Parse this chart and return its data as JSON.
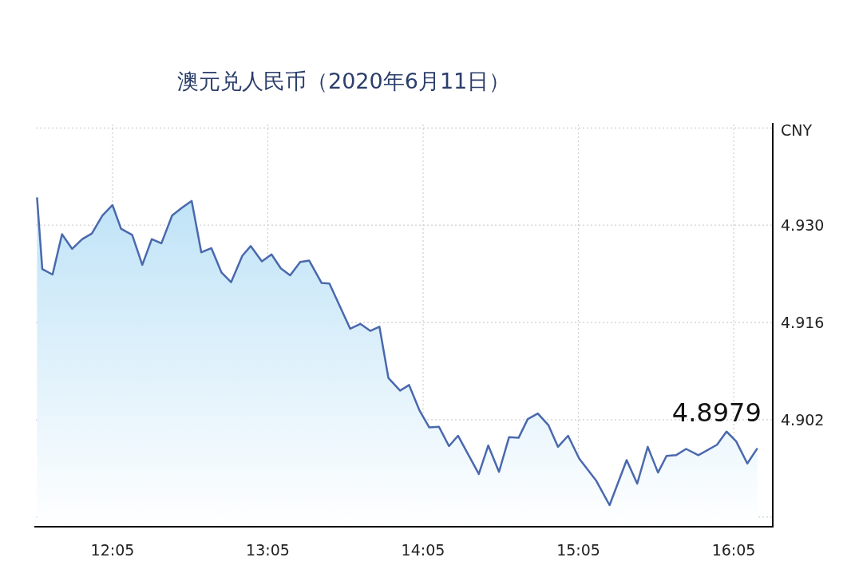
{
  "chart_data": {
    "type": "area",
    "title": "澳元兑人民币（2020年6月11日）",
    "ylabel": "CNY",
    "color": "#4a69ad",
    "x": [
      11.597,
      11.631,
      11.697,
      11.758,
      11.823,
      11.888,
      11.95,
      12.018,
      12.083,
      12.138,
      12.21,
      12.275,
      12.336,
      12.398,
      12.467,
      12.529,
      12.593,
      12.655,
      12.72,
      12.785,
      12.847,
      12.919,
      12.973,
      13.045,
      13.107,
      13.167,
      13.227,
      13.292,
      13.35,
      13.429,
      13.48,
      13.614,
      13.679,
      13.743,
      13.802,
      13.86,
      13.935,
      13.993,
      14.059,
      14.123,
      14.185,
      14.25,
      14.308,
      14.442,
      14.503,
      14.572,
      14.637,
      14.698,
      14.757,
      14.822,
      14.891,
      14.952,
      15.017,
      15.089,
      15.199,
      15.284,
      15.394,
      15.462,
      15.53,
      15.596,
      15.651,
      15.712,
      15.777,
      15.856,
      15.976,
      16.037,
      16.099,
      16.171,
      16.236
    ],
    "values": [
      4.934,
      4.9237,
      4.9229,
      4.9287,
      4.9266,
      4.928,
      4.9288,
      4.9314,
      4.9329,
      4.9295,
      4.9286,
      4.9243,
      4.928,
      4.9274,
      4.9314,
      4.9325,
      4.9335,
      4.9261,
      4.9267,
      4.9232,
      4.9218,
      4.9256,
      4.927,
      4.9248,
      4.9258,
      4.9238,
      4.9228,
      4.9247,
      4.9249,
      4.9217,
      4.9216,
      4.9151,
      4.9158,
      4.9148,
      4.9154,
      4.908,
      4.9062,
      4.907,
      4.9034,
      4.9009,
      4.901,
      4.8982,
      4.8997,
      4.8942,
      4.8983,
      4.8945,
      4.8995,
      4.8994,
      4.9021,
      4.9029,
      4.9012,
      4.8981,
      4.8997,
      4.8964,
      4.8932,
      4.8897,
      4.8962,
      4.8928,
      4.8981,
      4.8944,
      4.8968,
      4.8969,
      4.8978,
      4.8969,
      4.8984,
      4.9003,
      4.8989,
      4.8957,
      4.8979
    ],
    "xlim": [
      11.59,
      16.335
    ],
    "ylim": [
      4.8866,
      4.9445
    ],
    "xticks": [
      {
        "value": 12.0833,
        "label": "12:05"
      },
      {
        "value": 13.0833,
        "label": "13:05"
      },
      {
        "value": 14.0833,
        "label": "14:05"
      },
      {
        "value": 15.0833,
        "label": "15:05"
      },
      {
        "value": 16.0833,
        "label": "16:05"
      }
    ],
    "yticks": [
      {
        "value": 4.888,
        "label": null
      },
      {
        "value": 4.902,
        "label": "4.902"
      },
      {
        "value": 4.916,
        "label": "4.916"
      },
      {
        "value": 4.93,
        "label": "4.930"
      },
      {
        "value": 4.944,
        "label": null
      }
    ],
    "grid": true,
    "annotations": [
      {
        "text": "4.8979",
        "x": 16.236,
        "y": 4.8979
      }
    ]
  }
}
